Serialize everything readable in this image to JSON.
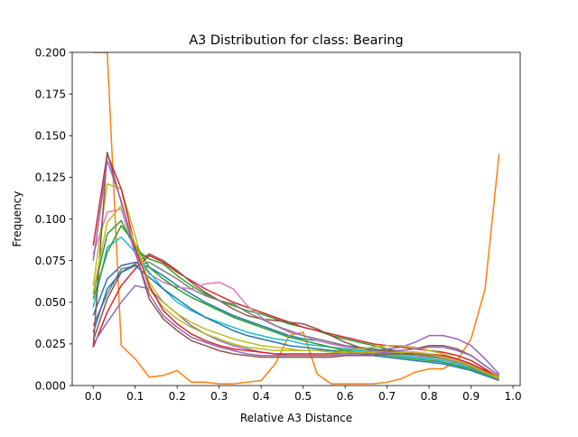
{
  "chart_data": {
    "type": "line",
    "title": "A3 Distribution for class: Bearing",
    "xlabel": "Relative A3 Distance",
    "ylabel": "Frequency",
    "xlim": [
      -0.05,
      1.017
    ],
    "ylim": [
      0,
      0.2
    ],
    "grid": false,
    "legend": "none",
    "xticks": [
      0.0,
      0.1,
      0.2,
      0.3,
      0.4,
      0.5,
      0.6,
      0.7,
      0.8,
      0.9,
      1.0
    ],
    "xtick_labels": [
      "0.0",
      "0.1",
      "0.2",
      "0.3",
      "0.4",
      "0.5",
      "0.6",
      "0.7",
      "0.8",
      "0.9",
      "1.0"
    ],
    "yticks": [
      0.0,
      0.025,
      0.05,
      0.075,
      0.1,
      0.125,
      0.15,
      0.175,
      0.2
    ],
    "ytick_labels": [
      "0.000",
      "0.025",
      "0.050",
      "0.075",
      "0.100",
      "0.125",
      "0.150",
      "0.175",
      "0.200"
    ],
    "x": [
      0.0,
      0.0333,
      0.0667,
      0.1,
      0.1333,
      0.1667,
      0.2,
      0.2333,
      0.2667,
      0.3,
      0.3333,
      0.3667,
      0.4,
      0.4333,
      0.4667,
      0.5,
      0.5333,
      0.5667,
      0.6,
      0.6333,
      0.6667,
      0.7,
      0.7333,
      0.7667,
      0.8,
      0.8333,
      0.8667,
      0.9,
      0.9333,
      0.9667
    ],
    "series": [
      {
        "color": "#1f77b4",
        "values": [
          0.042,
          0.064,
          0.072,
          0.074,
          0.071,
          0.066,
          0.06,
          0.055,
          0.05,
          0.046,
          0.042,
          0.039,
          0.036,
          0.033,
          0.03,
          0.028,
          0.027,
          0.025,
          0.024,
          0.023,
          0.022,
          0.021,
          0.02,
          0.02,
          0.019,
          0.017,
          0.015,
          0.012,
          0.008,
          0.004
        ]
      },
      {
        "color": "#ff7f0e",
        "values": [
          0.2,
          0.2,
          0.024,
          0.016,
          0.005,
          0.006,
          0.009,
          0.002,
          0.002,
          0.001,
          0.001,
          0.002,
          0.003,
          0.013,
          0.03,
          0.032,
          0.007,
          0.001,
          0.001,
          0.001,
          0.001,
          0.002,
          0.004,
          0.008,
          0.01,
          0.01,
          0.015,
          0.028,
          0.058,
          0.139
        ]
      },
      {
        "color": "#2ca02c",
        "values": [
          0.055,
          0.091,
          0.099,
          0.082,
          0.076,
          0.073,
          0.066,
          0.06,
          0.055,
          0.051,
          0.048,
          0.045,
          0.043,
          0.04,
          0.037,
          0.035,
          0.033,
          0.03,
          0.028,
          0.026,
          0.024,
          0.022,
          0.02,
          0.019,
          0.018,
          0.017,
          0.015,
          0.012,
          0.009,
          0.005
        ]
      },
      {
        "color": "#d62728",
        "values": [
          0.023,
          0.044,
          0.06,
          0.07,
          0.078,
          0.074,
          0.068,
          0.063,
          0.058,
          0.054,
          0.05,
          0.047,
          0.044,
          0.041,
          0.038,
          0.035,
          0.033,
          0.031,
          0.029,
          0.027,
          0.025,
          0.024,
          0.023,
          0.022,
          0.021,
          0.02,
          0.018,
          0.015,
          0.01,
          0.005
        ]
      },
      {
        "color": "#9467bd",
        "values": [
          0.025,
          0.038,
          0.05,
          0.06,
          0.058,
          0.05,
          0.043,
          0.036,
          0.031,
          0.027,
          0.024,
          0.022,
          0.02,
          0.019,
          0.018,
          0.018,
          0.018,
          0.018,
          0.019,
          0.02,
          0.021,
          0.022,
          0.023,
          0.026,
          0.03,
          0.03,
          0.028,
          0.024,
          0.016,
          0.007
        ]
      },
      {
        "color": "#8c564b",
        "values": [
          0.027,
          0.052,
          0.068,
          0.073,
          0.079,
          0.075,
          0.069,
          0.062,
          0.056,
          0.051,
          0.046,
          0.042,
          0.04,
          0.039,
          0.038,
          0.037,
          0.034,
          0.03,
          0.026,
          0.023,
          0.021,
          0.021,
          0.021,
          0.022,
          0.024,
          0.024,
          0.022,
          0.018,
          0.012,
          0.006
        ]
      },
      {
        "color": "#e377c2",
        "values": [
          0.079,
          0.104,
          0.106,
          0.079,
          0.067,
          0.062,
          0.059,
          0.058,
          0.061,
          0.062,
          0.058,
          0.048,
          0.041,
          0.036,
          0.032,
          0.03,
          0.027,
          0.025,
          0.023,
          0.021,
          0.02,
          0.019,
          0.018,
          0.017,
          0.016,
          0.014,
          0.012,
          0.01,
          0.007,
          0.004
        ]
      },
      {
        "color": "#7f7f7f",
        "values": [
          0.036,
          0.055,
          0.07,
          0.072,
          0.074,
          0.069,
          0.064,
          0.058,
          0.054,
          0.051,
          0.049,
          0.044,
          0.04,
          0.036,
          0.033,
          0.03,
          0.028,
          0.026,
          0.024,
          0.022,
          0.021,
          0.02,
          0.019,
          0.018,
          0.017,
          0.016,
          0.014,
          0.011,
          0.008,
          0.004
        ]
      },
      {
        "color": "#bcbd22",
        "values": [
          0.06,
          0.121,
          0.118,
          0.09,
          0.058,
          0.047,
          0.04,
          0.035,
          0.031,
          0.028,
          0.025,
          0.023,
          0.022,
          0.021,
          0.021,
          0.021,
          0.021,
          0.021,
          0.021,
          0.022,
          0.023,
          0.024,
          0.024,
          0.023,
          0.021,
          0.019,
          0.016,
          0.013,
          0.009,
          0.005
        ]
      },
      {
        "color": "#17becf",
        "values": [
          0.047,
          0.083,
          0.089,
          0.08,
          0.068,
          0.058,
          0.05,
          0.045,
          0.041,
          0.038,
          0.035,
          0.032,
          0.03,
          0.028,
          0.027,
          0.025,
          0.024,
          0.023,
          0.022,
          0.021,
          0.02,
          0.019,
          0.018,
          0.017,
          0.016,
          0.015,
          0.013,
          0.01,
          0.007,
          0.004
        ]
      },
      {
        "color": "#1f77b4",
        "values": [
          0.032,
          0.058,
          0.068,
          0.072,
          0.065,
          0.058,
          0.052,
          0.046,
          0.041,
          0.037,
          0.033,
          0.03,
          0.028,
          0.026,
          0.024,
          0.023,
          0.022,
          0.021,
          0.02,
          0.019,
          0.018,
          0.017,
          0.016,
          0.015,
          0.014,
          0.013,
          0.011,
          0.009,
          0.006,
          0.003
        ]
      },
      {
        "color": "#2ca02c",
        "values": [
          0.052,
          0.08,
          0.096,
          0.085,
          0.071,
          0.064,
          0.058,
          0.053,
          0.049,
          0.045,
          0.041,
          0.038,
          0.035,
          0.032,
          0.029,
          0.027,
          0.025,
          0.023,
          0.021,
          0.02,
          0.019,
          0.018,
          0.017,
          0.016,
          0.015,
          0.014,
          0.012,
          0.01,
          0.007,
          0.004
        ]
      },
      {
        "color": "#d62728",
        "values": [
          0.084,
          0.139,
          0.118,
          0.083,
          0.06,
          0.045,
          0.037,
          0.031,
          0.027,
          0.024,
          0.022,
          0.021,
          0.02,
          0.019,
          0.019,
          0.019,
          0.019,
          0.019,
          0.02,
          0.02,
          0.02,
          0.02,
          0.02,
          0.02,
          0.019,
          0.018,
          0.016,
          0.013,
          0.009,
          0.004
        ]
      },
      {
        "color": "#8c564b",
        "values": [
          0.023,
          0.14,
          0.11,
          0.08,
          0.052,
          0.04,
          0.033,
          0.027,
          0.024,
          0.021,
          0.019,
          0.018,
          0.017,
          0.017,
          0.017,
          0.017,
          0.017,
          0.017,
          0.018,
          0.018,
          0.018,
          0.019,
          0.019,
          0.019,
          0.018,
          0.017,
          0.015,
          0.012,
          0.008,
          0.004
        ]
      },
      {
        "color": "#bcbd22",
        "values": [
          0.056,
          0.098,
          0.108,
          0.085,
          0.062,
          0.05,
          0.043,
          0.038,
          0.034,
          0.031,
          0.028,
          0.026,
          0.024,
          0.023,
          0.022,
          0.021,
          0.021,
          0.02,
          0.02,
          0.02,
          0.02,
          0.02,
          0.02,
          0.02,
          0.019,
          0.017,
          0.015,
          0.012,
          0.008,
          0.004
        ]
      },
      {
        "color": "#9467bd",
        "values": [
          0.075,
          0.135,
          0.111,
          0.08,
          0.055,
          0.042,
          0.035,
          0.029,
          0.026,
          0.023,
          0.021,
          0.019,
          0.018,
          0.018,
          0.018,
          0.018,
          0.018,
          0.018,
          0.019,
          0.019,
          0.019,
          0.02,
          0.021,
          0.022,
          0.023,
          0.023,
          0.021,
          0.018,
          0.012,
          0.006
        ]
      }
    ]
  }
}
